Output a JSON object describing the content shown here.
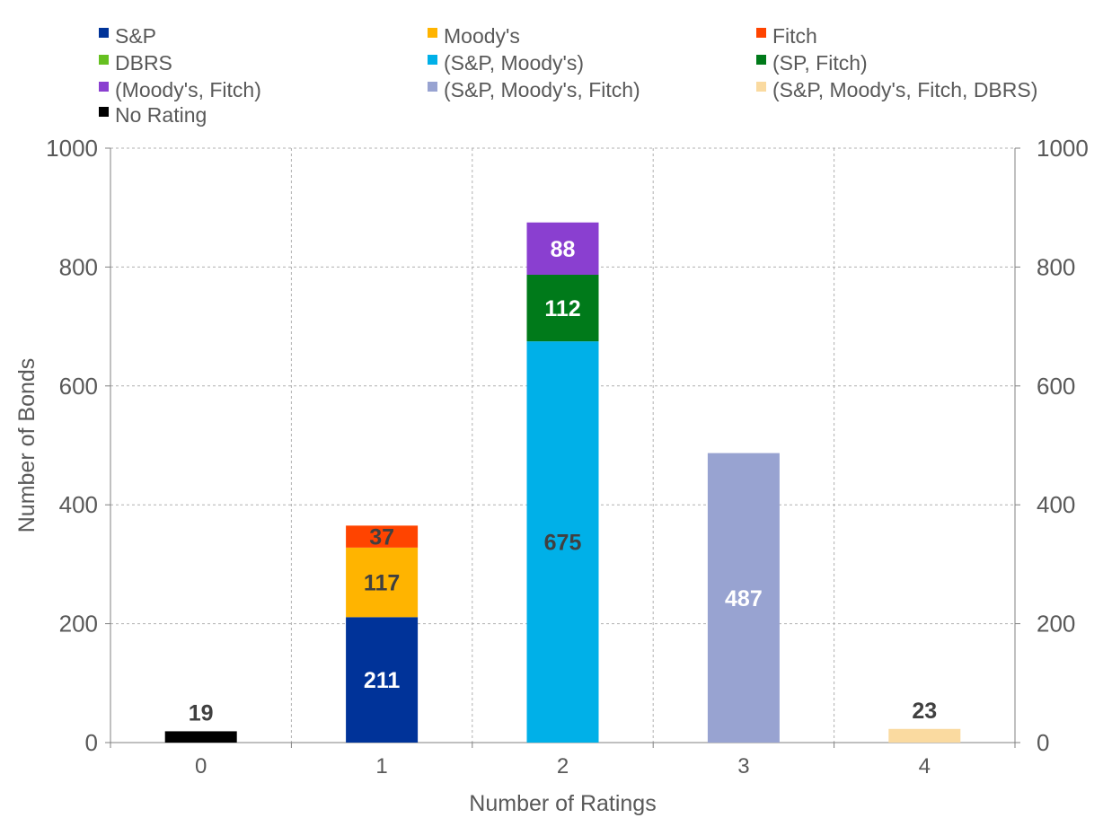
{
  "chart_data": {
    "type": "bar",
    "stacked": true,
    "xlabel": "Number  of Ratings",
    "ylabel": "Number  of Bonds",
    "categories": [
      "0",
      "1",
      "2",
      "3",
      "4"
    ],
    "ylim": [
      0,
      1000
    ],
    "yticks": [
      "0",
      "200",
      "400",
      "600",
      "800",
      "1000"
    ],
    "y2ticks": [
      "0",
      "200",
      "400",
      "600",
      "800",
      "1000"
    ],
    "grid": true,
    "legend_position": "top",
    "series": [
      {
        "name": "S&P",
        "color": "#003399",
        "label_color": "#ffffff",
        "values": [
          0,
          211,
          0,
          0,
          0
        ],
        "labels": [
          "",
          "211",
          "",
          "",
          ""
        ]
      },
      {
        "name": "Moody's",
        "color": "#ffb400",
        "label_color": "#404040",
        "values": [
          0,
          117,
          0,
          0,
          0
        ],
        "labels": [
          "",
          "117",
          "",
          "",
          ""
        ]
      },
      {
        "name": "Fitch",
        "color": "#ff4400",
        "label_color": "#404040",
        "values": [
          0,
          37,
          0,
          0,
          0
        ],
        "labels": [
          "",
          "37",
          "",
          "",
          ""
        ]
      },
      {
        "name": "DBRS",
        "color": "#66c020",
        "label_color": "#404040",
        "values": [
          0,
          0,
          0,
          0,
          0
        ],
        "labels": [
          "",
          "",
          "",
          "",
          ""
        ]
      },
      {
        "name": "(S&P, Moody's)",
        "color": "#00b0e8",
        "label_color": "#404040",
        "values": [
          0,
          0,
          675,
          0,
          0
        ],
        "labels": [
          "",
          "",
          "675",
          "",
          ""
        ]
      },
      {
        "name": "(SP, Fitch)",
        "color": "#007a1a",
        "label_color": "#ffffff",
        "values": [
          0,
          0,
          112,
          0,
          0
        ],
        "labels": [
          "",
          "",
          "112",
          "",
          ""
        ]
      },
      {
        "name": "(Moody's, Fitch)",
        "color": "#8a3fd0",
        "label_color": "#ffffff",
        "values": [
          0,
          0,
          88,
          0,
          0
        ],
        "labels": [
          "",
          "",
          "88",
          "",
          ""
        ]
      },
      {
        "name": "(S&P, Moody's, Fitch)",
        "color": "#98a3d1",
        "label_color": "#ffffff",
        "values": [
          0,
          0,
          0,
          487,
          0
        ],
        "labels": [
          "",
          "",
          "",
          "487",
          ""
        ]
      },
      {
        "name": "(S&P, Moody's, Fitch, DBRS)",
        "color": "#fadaa0",
        "label_color": "#404040",
        "values": [
          0,
          0,
          0,
          0,
          23
        ],
        "labels": [
          "",
          "",
          "",
          "",
          "23"
        ],
        "label_above": true
      },
      {
        "name": "No Rating",
        "color": "#000000",
        "label_color": "#404040",
        "values": [
          19,
          0,
          0,
          0,
          0
        ],
        "labels": [
          "19",
          "",
          "",
          "",
          ""
        ],
        "label_above": true
      }
    ]
  }
}
